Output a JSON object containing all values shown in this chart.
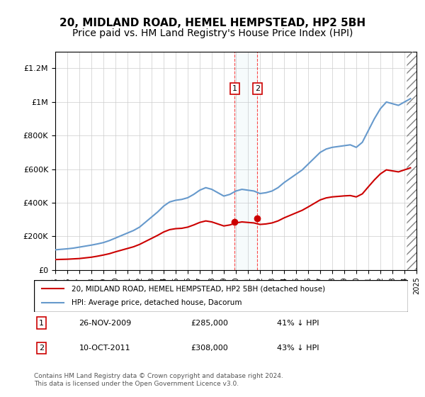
{
  "title": "20, MIDLAND ROAD, HEMEL HEMPSTEAD, HP2 5BH",
  "subtitle": "Price paid vs. HM Land Registry's House Price Index (HPI)",
  "title_fontsize": 11,
  "subtitle_fontsize": 10,
  "background_color": "#ffffff",
  "grid_color": "#cccccc",
  "hpi_color": "#6699cc",
  "price_color": "#cc0000",
  "ylim": [
    0,
    1300000
  ],
  "yticks": [
    0,
    200000,
    400000,
    600000,
    800000,
    1000000,
    1200000
  ],
  "ytick_labels": [
    "£0",
    "£200K",
    "£400K",
    "£600K",
    "£800K",
    "£1M",
    "£1.2M"
  ],
  "sale1": {
    "date_num": 2009.9,
    "price": 285000,
    "label": "1",
    "date_str": "26-NOV-2009",
    "pct": "41% ↓ HPI"
  },
  "sale2": {
    "date_num": 2011.78,
    "price": 308000,
    "label": "2",
    "date_str": "10-OCT-2011",
    "pct": "43% ↓ HPI"
  },
  "legend_line1": "20, MIDLAND ROAD, HEMEL HEMPSTEAD, HP2 5BH (detached house)",
  "legend_line2": "HPI: Average price, detached house, Dacorum",
  "footer": "Contains HM Land Registry data © Crown copyright and database right 2024.\nThis data is licensed under the Open Government Licence v3.0.",
  "xmin": 1995,
  "xmax": 2025,
  "hpi_data": {
    "years": [
      1995,
      1995.5,
      1996,
      1996.5,
      1997,
      1997.5,
      1998,
      1998.5,
      1999,
      1999.5,
      2000,
      2000.5,
      2001,
      2001.5,
      2002,
      2002.5,
      2003,
      2003.5,
      2004,
      2004.5,
      2005,
      2005.5,
      2006,
      2006.5,
      2007,
      2007.5,
      2008,
      2008.5,
      2009,
      2009.5,
      2010,
      2010.5,
      2011,
      2011.5,
      2012,
      2012.5,
      2013,
      2013.5,
      2014,
      2014.5,
      2015,
      2015.5,
      2016,
      2016.5,
      2017,
      2017.5,
      2018,
      2018.5,
      2019,
      2019.5,
      2020,
      2020.5,
      2021,
      2021.5,
      2022,
      2022.5,
      2023,
      2023.5,
      2024,
      2024.5
    ],
    "values": [
      120000,
      123000,
      126000,
      130000,
      136000,
      142000,
      148000,
      155000,
      163000,
      175000,
      190000,
      205000,
      220000,
      235000,
      255000,
      285000,
      315000,
      345000,
      380000,
      405000,
      415000,
      420000,
      430000,
      450000,
      475000,
      490000,
      480000,
      460000,
      440000,
      450000,
      470000,
      480000,
      475000,
      470000,
      455000,
      460000,
      470000,
      490000,
      520000,
      545000,
      570000,
      595000,
      630000,
      665000,
      700000,
      720000,
      730000,
      735000,
      740000,
      745000,
      730000,
      760000,
      830000,
      900000,
      960000,
      1000000,
      990000,
      980000,
      1000000,
      1020000
    ]
  },
  "price_data": {
    "years": [
      1995,
      1995.5,
      1996,
      1996.5,
      1997,
      1997.5,
      1998,
      1998.5,
      1999,
      1999.5,
      2000,
      2000.5,
      2001,
      2001.5,
      2002,
      2002.5,
      2003,
      2003.5,
      2004,
      2004.5,
      2005,
      2005.5,
      2006,
      2006.5,
      2007,
      2007.5,
      2008,
      2008.5,
      2009,
      2009.5,
      2010,
      2010.5,
      2011,
      2011.5,
      2012,
      2012.5,
      2013,
      2013.5,
      2014,
      2014.5,
      2015,
      2015.5,
      2016,
      2016.5,
      2017,
      2017.5,
      2018,
      2018.5,
      2019,
      2019.5,
      2020,
      2020.5,
      2021,
      2021.5,
      2022,
      2022.5,
      2023,
      2023.5,
      2024,
      2024.5
    ],
    "values": [
      62000,
      63000,
      64000,
      66000,
      68000,
      72000,
      76000,
      82000,
      89000,
      97000,
      108000,
      118000,
      128000,
      138000,
      152000,
      170000,
      188000,
      206000,
      226000,
      240000,
      246000,
      248000,
      255000,
      268000,
      283000,
      292000,
      286000,
      274000,
      262000,
      268000,
      280000,
      286000,
      283000,
      280000,
      271000,
      274000,
      280000,
      292000,
      310000,
      325000,
      340000,
      355000,
      375000,
      396000,
      417000,
      429000,
      435000,
      438000,
      441000,
      443000,
      435000,
      453000,
      495000,
      536000,
      572000,
      596000,
      590000,
      584000,
      596000,
      608000
    ]
  }
}
